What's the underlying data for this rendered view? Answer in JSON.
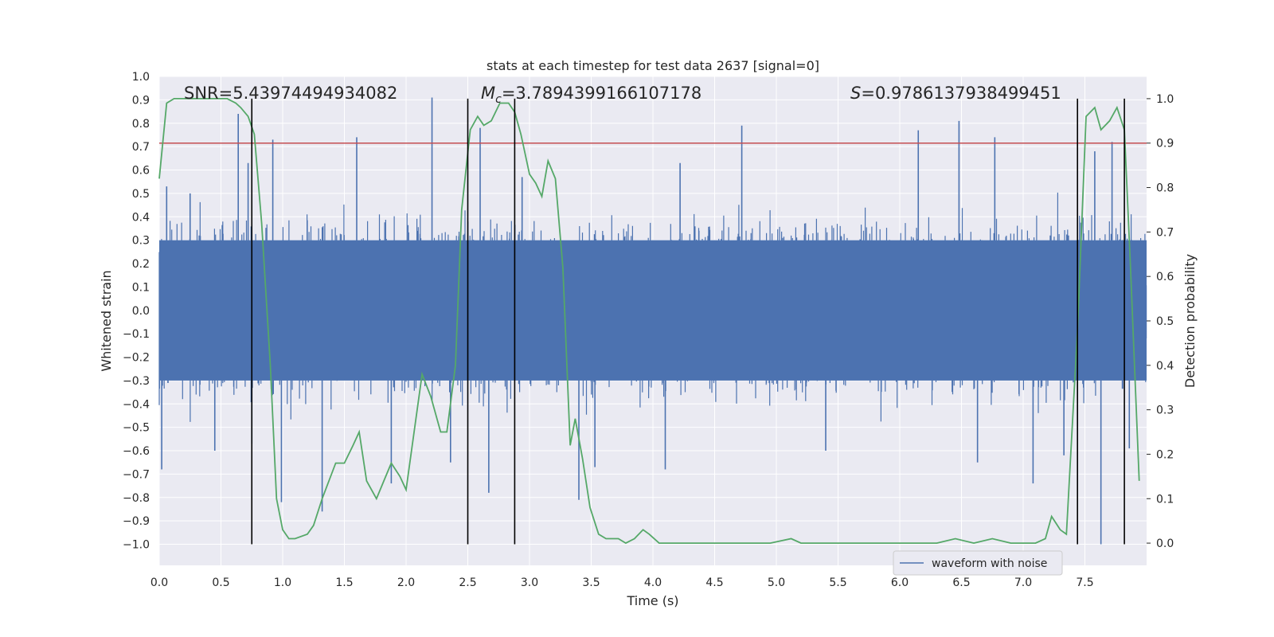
{
  "chart_data": {
    "type": "line",
    "title": "stats at each timestep for test data 2637 [signal=0]",
    "xlabel": "Time (s)",
    "ylabel": "Whitened strain",
    "y2label": "Detection probability",
    "xlim": [
      0.0,
      8.0
    ],
    "ylim": [
      -1.09,
      1.0
    ],
    "y2lim": [
      -0.05,
      1.05
    ],
    "x_ticks": [
      0.0,
      0.5,
      1.0,
      1.5,
      2.0,
      2.5,
      3.0,
      3.5,
      4.0,
      4.5,
      5.0,
      5.5,
      6.0,
      6.5,
      7.0,
      7.5
    ],
    "y_ticks": [
      -1.0,
      -0.9,
      -0.8,
      -0.7,
      -0.6,
      -0.5,
      -0.4,
      -0.3,
      -0.2,
      -0.1,
      0.0,
      0.1,
      0.2,
      0.3,
      0.4,
      0.5,
      0.6,
      0.7,
      0.8,
      0.9,
      1.0
    ],
    "y2_ticks": [
      0.0,
      0.1,
      0.2,
      0.3,
      0.4,
      0.5,
      0.6,
      0.7,
      0.8,
      0.9,
      1.0
    ],
    "annotations": {
      "snr": "SNR=5.43974494934082",
      "mc_prefix": "M",
      "mc_sub": "c",
      "mc_value": "=3.7894399166107178",
      "s_prefix": "S",
      "s_value": "=0.9786137938499451"
    },
    "threshold": {
      "value": 0.9,
      "axis": "y2",
      "color": "#c44e52"
    },
    "vertical_lines": [
      0.75,
      2.5,
      2.88,
      7.44,
      7.82
    ],
    "vertical_line_range": [
      -1.0,
      1.0
    ],
    "legend": {
      "label": "waveform with noise",
      "placement": "bottom-right"
    },
    "series": [
      {
        "name": "waveform with noise",
        "axis": "y",
        "color": "#4c72b0",
        "style": "noise",
        "amplitude": 0.28,
        "peaks": [
          {
            "x": 0.02,
            "y": -0.68
          },
          {
            "x": 0.06,
            "y": 0.53
          },
          {
            "x": 0.25,
            "y": 0.5
          },
          {
            "x": 0.45,
            "y": -0.6
          },
          {
            "x": 0.64,
            "y": 0.84
          },
          {
            "x": 0.72,
            "y": 0.63
          },
          {
            "x": 0.75,
            "y": -0.57
          },
          {
            "x": 0.92,
            "y": 0.73
          },
          {
            "x": 0.99,
            "y": -0.82
          },
          {
            "x": 1.32,
            "y": -0.86
          },
          {
            "x": 1.6,
            "y": 0.74
          },
          {
            "x": 1.88,
            "y": -0.74
          },
          {
            "x": 2.21,
            "y": 0.91
          },
          {
            "x": 2.36,
            "y": -0.65
          },
          {
            "x": 2.6,
            "y": 0.78
          },
          {
            "x": 2.67,
            "y": -0.78
          },
          {
            "x": 2.94,
            "y": 0.57
          },
          {
            "x": 3.4,
            "y": -0.81
          },
          {
            "x": 3.53,
            "y": -0.67
          },
          {
            "x": 4.1,
            "y": -0.68
          },
          {
            "x": 4.22,
            "y": 0.63
          },
          {
            "x": 4.72,
            "y": 0.79
          },
          {
            "x": 5.4,
            "y": -0.6
          },
          {
            "x": 6.15,
            "y": 0.77
          },
          {
            "x": 6.48,
            "y": 0.81
          },
          {
            "x": 6.63,
            "y": -0.65
          },
          {
            "x": 6.77,
            "y": 0.74
          },
          {
            "x": 7.08,
            "y": -0.74
          },
          {
            "x": 7.33,
            "y": -0.62
          },
          {
            "x": 7.63,
            "y": -1.0
          },
          {
            "x": 7.58,
            "y": 0.68
          },
          {
            "x": 7.72,
            "y": 0.72
          },
          {
            "x": 7.86,
            "y": -0.59
          }
        ]
      },
      {
        "name": "detection probability",
        "axis": "y2",
        "color": "#55a868",
        "x": [
          0.0,
          0.06,
          0.12,
          0.2,
          0.3,
          0.45,
          0.55,
          0.62,
          0.66,
          0.72,
          0.77,
          0.83,
          0.9,
          0.95,
          1.0,
          1.05,
          1.1,
          1.2,
          1.25,
          1.32,
          1.43,
          1.5,
          1.57,
          1.62,
          1.68,
          1.76,
          1.82,
          1.88,
          1.95,
          2.0,
          2.13,
          2.2,
          2.28,
          2.33,
          2.4,
          2.45,
          2.52,
          2.58,
          2.63,
          2.69,
          2.76,
          2.83,
          2.88,
          2.93,
          3.0,
          3.05,
          3.1,
          3.15,
          3.21,
          3.27,
          3.33,
          3.37,
          3.43,
          3.49,
          3.56,
          3.62,
          3.72,
          3.78,
          3.85,
          3.92,
          3.97,
          4.05,
          4.17,
          4.42,
          4.7,
          4.95,
          5.12,
          5.2,
          5.4,
          5.6,
          5.95,
          6.3,
          6.45,
          6.6,
          6.75,
          6.9,
          7.1,
          7.18,
          7.23,
          7.3,
          7.35,
          7.44,
          7.51,
          7.58,
          7.63,
          7.7,
          7.76,
          7.82,
          7.87,
          7.94
        ],
        "values": [
          0.82,
          0.99,
          1.0,
          1.0,
          1.0,
          1.0,
          1.0,
          0.99,
          0.98,
          0.96,
          0.92,
          0.72,
          0.4,
          0.1,
          0.03,
          0.01,
          0.01,
          0.02,
          0.04,
          0.1,
          0.18,
          0.18,
          0.22,
          0.25,
          0.14,
          0.1,
          0.14,
          0.18,
          0.15,
          0.12,
          0.38,
          0.33,
          0.25,
          0.25,
          0.4,
          0.75,
          0.93,
          0.96,
          0.94,
          0.95,
          0.99,
          0.99,
          0.97,
          0.92,
          0.83,
          0.81,
          0.78,
          0.86,
          0.82,
          0.62,
          0.22,
          0.28,
          0.19,
          0.08,
          0.02,
          0.01,
          0.01,
          0.0,
          0.01,
          0.03,
          0.02,
          0.0,
          0.0,
          0.0,
          0.0,
          0.0,
          0.01,
          0.0,
          0.0,
          0.0,
          0.0,
          0.0,
          0.01,
          0.0,
          0.01,
          0.0,
          0.0,
          0.01,
          0.06,
          0.03,
          0.02,
          0.48,
          0.96,
          0.98,
          0.93,
          0.95,
          0.98,
          0.93,
          0.62,
          0.14
        ]
      }
    ]
  }
}
